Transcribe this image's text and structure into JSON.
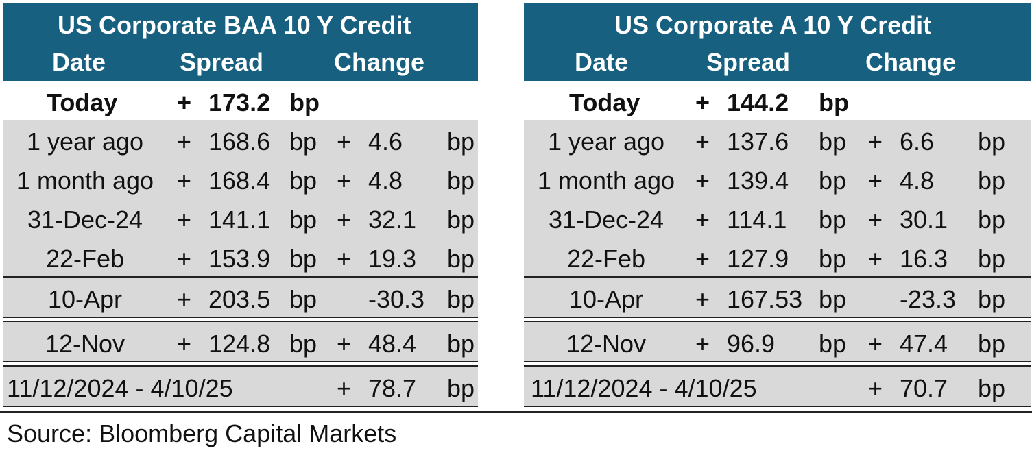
{
  "left": {
    "title": "US Corporate BAA 10 Y  Credit",
    "col_date": "Date",
    "col_spread": "Spread",
    "col_change": "Change",
    "today": {
      "label": "Today",
      "sign": "+",
      "value": "173.2",
      "unit": "bp"
    },
    "rows": [
      {
        "label": "1 year ago",
        "sign": "+",
        "value": "168.6",
        "unit": "bp",
        "csign": "+",
        "change": "4.6",
        "cunit": "bp"
      },
      {
        "label": "1 month ago",
        "sign": "+",
        "value": "168.4",
        "unit": "bp",
        "csign": "+",
        "change": "4.8",
        "cunit": "bp"
      },
      {
        "label": "31-Dec-24",
        "sign": "+",
        "value": "141.1",
        "unit": "bp",
        "csign": "+",
        "change": "32.1",
        "cunit": "bp"
      },
      {
        "label": "22-Feb",
        "sign": "+",
        "value": "153.9",
        "unit": "bp",
        "csign": "+",
        "change": "19.3",
        "cunit": "bp"
      }
    ],
    "apr": {
      "label": "10-Apr",
      "sign": "+",
      "value": "203.5",
      "unit": "bp",
      "change": "-30.3",
      "cunit": "bp"
    },
    "nov": {
      "label": "12-Nov",
      "sign": "+",
      "value": "124.8",
      "unit": "bp",
      "csign": "+",
      "change": "48.4",
      "cunit": "bp"
    },
    "range": {
      "label": "11/12/2024 - 4/10/25",
      "csign": "+",
      "change": "78.7",
      "cunit": "bp"
    }
  },
  "right": {
    "title": "US Corporate A 10 Y Credit",
    "col_date": "Date",
    "col_spread": "Spread",
    "col_change": "Change",
    "today": {
      "label": "Today",
      "sign": "+",
      "value": "144.2",
      "unit": "bp"
    },
    "rows": [
      {
        "label": "1 year ago",
        "sign": "+",
        "value": "137.6",
        "unit": "bp",
        "csign": "+",
        "change": "6.6",
        "cunit": "bp"
      },
      {
        "label": "1 month ago",
        "sign": "+",
        "value": "139.4",
        "unit": "bp",
        "csign": "+",
        "change": "4.8",
        "cunit": "bp"
      },
      {
        "label": "31-Dec-24",
        "sign": "+",
        "value": "114.1",
        "unit": "bp",
        "csign": "+",
        "change": "30.1",
        "cunit": "bp"
      },
      {
        "label": "22-Feb",
        "sign": "+",
        "value": "127.9",
        "unit": "bp",
        "csign": "+",
        "change": "16.3",
        "cunit": "bp"
      }
    ],
    "apr": {
      "label": "10-Apr",
      "sign": "+",
      "value": "167.53",
      "unit": "bp",
      "change": "-23.3",
      "cunit": "bp"
    },
    "nov": {
      "label": "12-Nov",
      "sign": "+",
      "value": "96.9",
      "unit": "bp",
      "csign": "+",
      "change": "47.4",
      "cunit": "bp"
    },
    "range": {
      "label": "11/12/2024 - 4/10/25",
      "csign": "+",
      "change": "70.7",
      "cunit": "bp"
    }
  },
  "source": "Source: Bloomberg Capital Markets",
  "colors": {
    "header_bg": "#17607f",
    "row_bg": "#d9d9d9"
  }
}
